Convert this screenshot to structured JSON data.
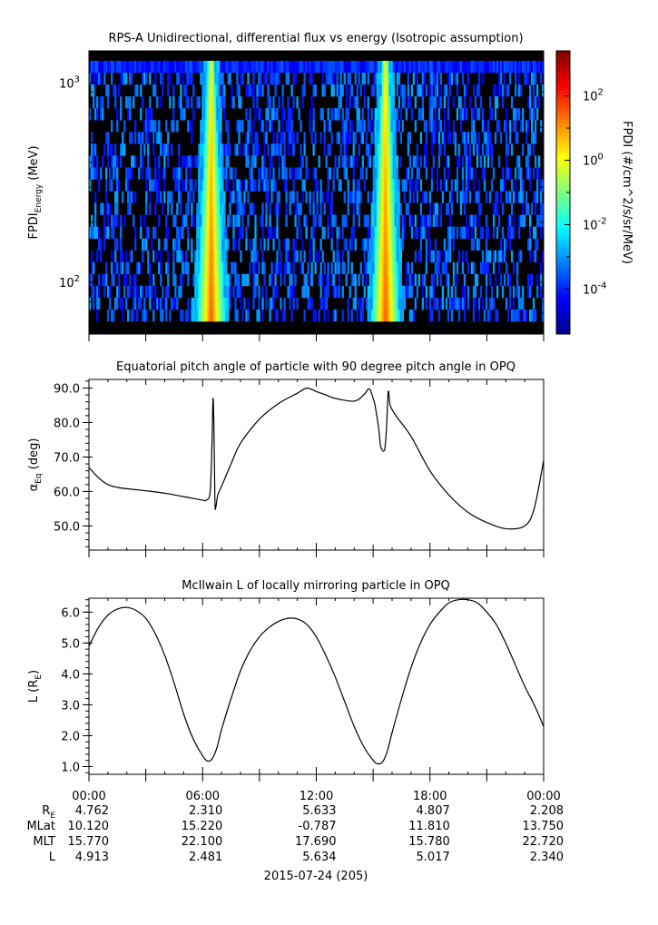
{
  "chart_data": [
    {
      "type": "heatmap",
      "title": "RPS-A Unidirectional, differential flux vs energy (Isotropic assumption)",
      "ylabel_main": "FPDI",
      "ylabel_sub": "Energy",
      "ylabel_unit": " (MeV)",
      "yscale": "log",
      "ylim": [
        55,
        1450
      ],
      "y_tick_labels": [
        {
          "base": "10",
          "exp": "3",
          "value": 1000
        },
        {
          "base": "10",
          "exp": "2",
          "value": 100
        }
      ],
      "energy_channels": 22,
      "colorbar": {
        "label": "FPDI (#/cm^2/s/sr/MeV)",
        "scale": "log",
        "range_exp": [
          -5.4,
          3.4
        ],
        "ticks": [
          {
            "base": "10",
            "exp": "2",
            "value_exp": 2
          },
          {
            "base": "10",
            "exp": "0",
            "value_exp": 0
          },
          {
            "base": "10",
            "exp": "-2",
            "value_exp": -2
          },
          {
            "base": "10",
            "exp": "-4",
            "value_exp": -4
          }
        ],
        "colors": [
          "#00008f",
          "#0000ff",
          "#0080ff",
          "#00ffff",
          "#80ff80",
          "#ffff00",
          "#ff8000",
          "#ff0000",
          "#800000"
        ]
      },
      "fill_value_color": "#000000",
      "high_flux_bands_hours": [
        6.45,
        15.65
      ]
    },
    {
      "type": "line",
      "title": "Equatorial pitch angle of particle with 90 degree pitch angle in OPQ",
      "ylabel_main": "α",
      "ylabel_sub": "Eq",
      "ylabel_unit": " (deg)",
      "ylim": [
        43,
        92.5
      ],
      "y_ticks": [
        50,
        60,
        70,
        80,
        90
      ],
      "x_hours": [
        0,
        0.5,
        1,
        1.5,
        2,
        3,
        4,
        5,
        5.5,
        6,
        6.2,
        6.4,
        6.5,
        6.55,
        6.6,
        6.65,
        6.7,
        6.8,
        7,
        7.5,
        8,
        9,
        10,
        11,
        11.5,
        12,
        12.5,
        13,
        14,
        14.5,
        14.8,
        15,
        15.1,
        15.3,
        15.4,
        15.6,
        15.7,
        15.8,
        15.9,
        16.2,
        17,
        18,
        19,
        20,
        21,
        22,
        23,
        23.5,
        24
      ],
      "y_deg": [
        67,
        64,
        62,
        61.2,
        60.8,
        60.2,
        59.5,
        58.5,
        58,
        57.5,
        57.5,
        60,
        75,
        87,
        78,
        57,
        55.5,
        59,
        61.5,
        68,
        74,
        81,
        85.5,
        88.5,
        90,
        89,
        88,
        87,
        86.2,
        88,
        89.8,
        87,
        85,
        78,
        73,
        72,
        78,
        89,
        85,
        82,
        76,
        66,
        59,
        54,
        51,
        49.2,
        50,
        55,
        69
      ]
    },
    {
      "type": "line",
      "title": "McIlwain L of locally mirroring particle in OPQ",
      "ylabel_main": "L (R",
      "ylabel_sub": "E",
      "ylabel_unit": ")",
      "ylim": [
        0.75,
        6.45
      ],
      "y_ticks": [
        1.0,
        2.0,
        3.0,
        4.0,
        5.0,
        6.0
      ],
      "x_hours": [
        0,
        0.5,
        1,
        1.5,
        2,
        2.5,
        3,
        3.5,
        4,
        4.5,
        5,
        5.5,
        6,
        6.25,
        6.5,
        6.75,
        7,
        7.5,
        8,
        8.5,
        9,
        9.5,
        10,
        10.5,
        11,
        11.5,
        12,
        12.5,
        13,
        13.5,
        14,
        14.5,
        15,
        15.25,
        15.5,
        15.75,
        16,
        16.5,
        17,
        17.5,
        18,
        18.5,
        19,
        19.5,
        20,
        20.5,
        21,
        21.5,
        22,
        22.5,
        23,
        23.5,
        24
      ],
      "y": [
        4.9,
        5.5,
        5.9,
        6.1,
        6.15,
        6.05,
        5.8,
        5.3,
        4.6,
        3.7,
        2.7,
        1.9,
        1.35,
        1.18,
        1.25,
        1.6,
        2.2,
        3.2,
        4.1,
        4.75,
        5.2,
        5.5,
        5.7,
        5.8,
        5.78,
        5.6,
        5.2,
        4.6,
        3.9,
        3.1,
        2.3,
        1.65,
        1.2,
        1.09,
        1.15,
        1.5,
        2.1,
        3.2,
        4.2,
        5.0,
        5.6,
        6.0,
        6.3,
        6.4,
        6.4,
        6.3,
        6.0,
        5.6,
        5.0,
        4.3,
        3.6,
        3.0,
        2.3
      ]
    }
  ],
  "x_axis": {
    "tick_labels": [
      "00:00",
      "06:00",
      "12:00",
      "18:00",
      "00:00"
    ],
    "date_label": "2015-07-24 (205)"
  },
  "ephemeris": [
    {
      "label_main": "R",
      "label_sub": "E",
      "values": [
        "4.762",
        "2.310",
        "5.633",
        "4.807",
        "2.208"
      ]
    },
    {
      "label_main": "MLat",
      "label_sub": "",
      "values": [
        "10.120",
        "15.220",
        "-0.787",
        "11.810",
        "13.750"
      ]
    },
    {
      "label_main": "MLT",
      "label_sub": "",
      "values": [
        "15.770",
        "22.100",
        "17.690",
        "15.780",
        "22.720"
      ]
    },
    {
      "label_main": "L",
      "label_sub": "",
      "values": [
        "4.913",
        "2.481",
        "5.634",
        "5.017",
        "2.340"
      ]
    }
  ]
}
